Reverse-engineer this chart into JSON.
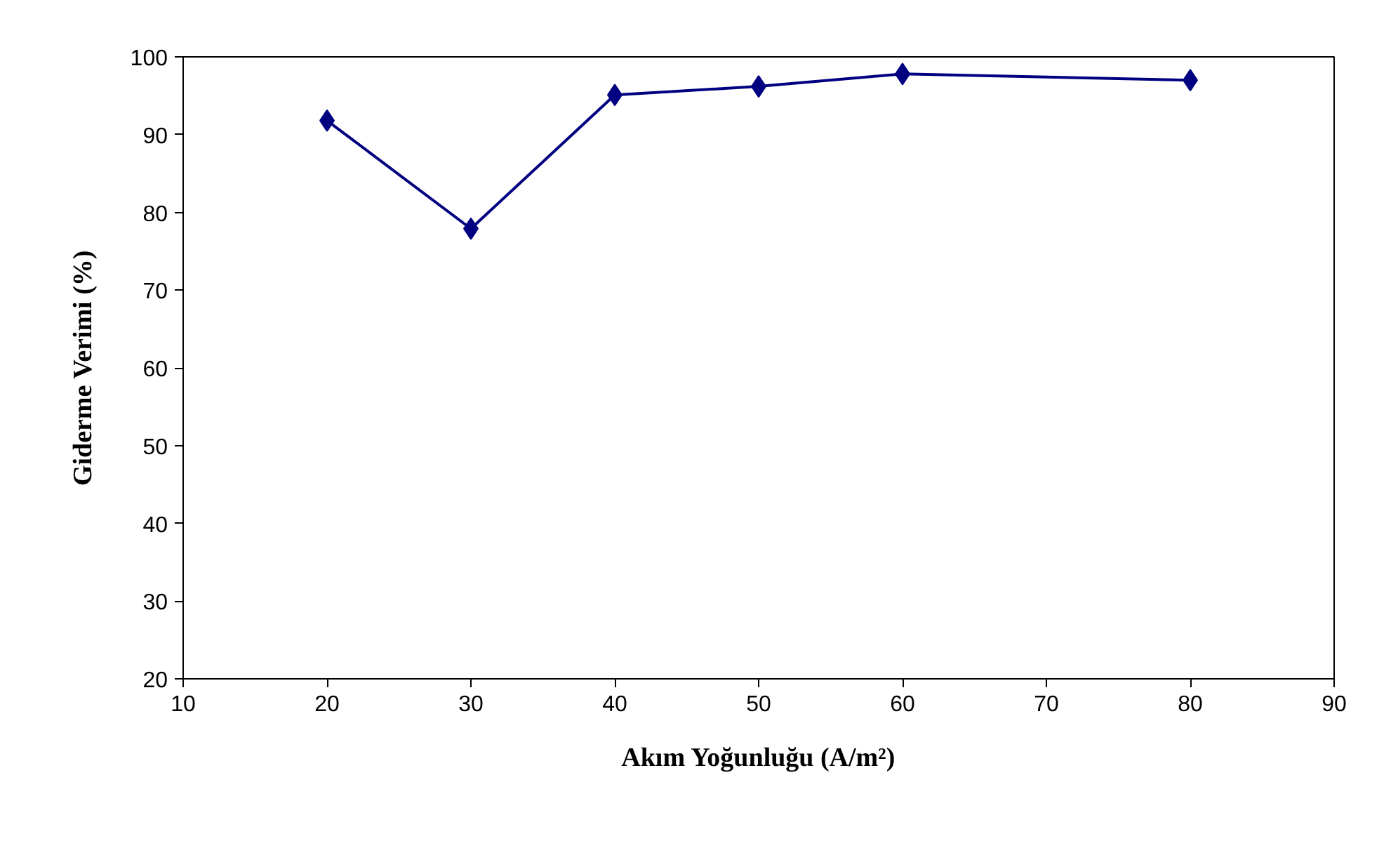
{
  "chart_data": {
    "type": "line",
    "xlabel": "Akım Yoğunluğu (A/m²)",
    "ylabel": "Giderme Verimi (%)",
    "x": [
      20,
      30,
      40,
      50,
      60,
      80
    ],
    "series": [
      {
        "color": "#000080",
        "values": [
          91.8,
          77.9,
          95.1,
          96.2,
          97.8,
          97.0
        ]
      }
    ],
    "xlim": [
      10,
      90
    ],
    "xticks": [
      10,
      20,
      30,
      40,
      50,
      60,
      70,
      80,
      90
    ],
    "ylim": [
      20,
      100
    ],
    "yticks": [
      20,
      30,
      40,
      50,
      60,
      70,
      80,
      90,
      100
    ],
    "marker": "diamond",
    "line_style": "solid"
  }
}
